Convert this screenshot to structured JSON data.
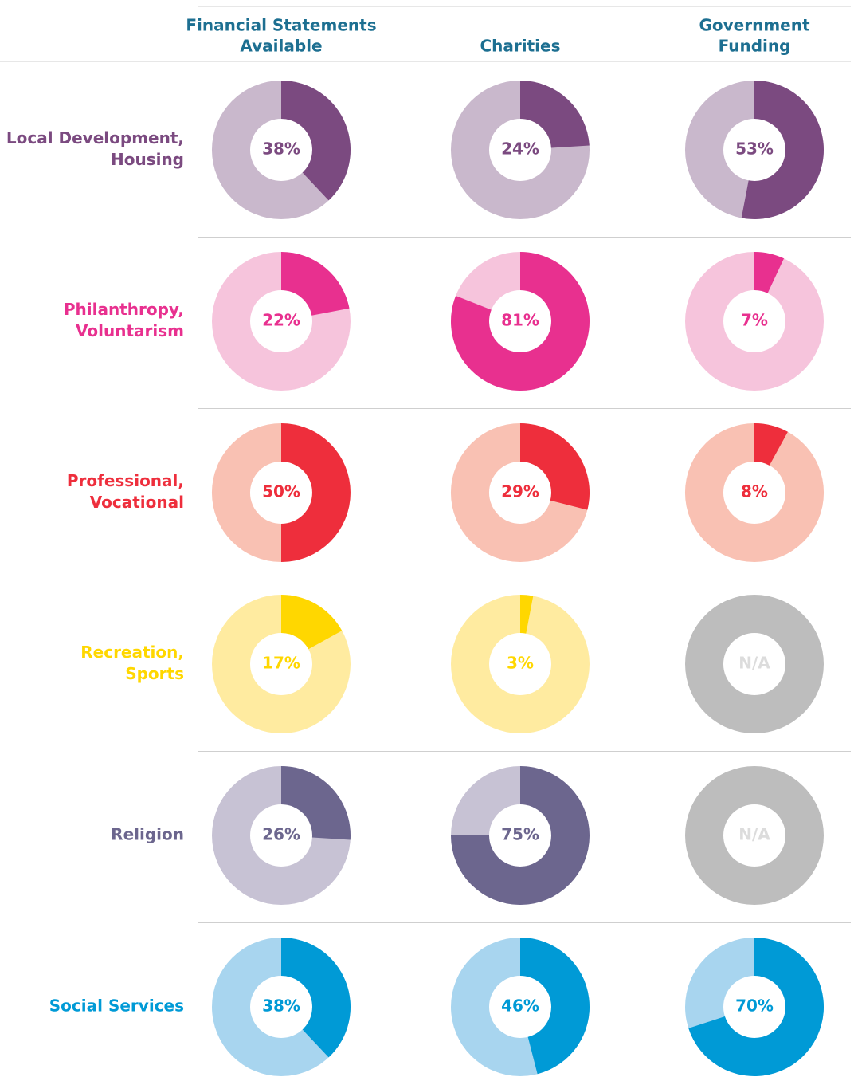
{
  "chart_data": {
    "type": "donut",
    "columns": [
      [
        "Financial Statements",
        "Available"
      ],
      [
        "Charities"
      ],
      [
        "Government",
        "Funding"
      ]
    ],
    "header_color": "#1d6f91",
    "na_color": "#bdbdbd",
    "na_text_color": "#dcdcdc",
    "rows": [
      {
        "label": [
          "Local Development,",
          "Housing"
        ],
        "color": "#7b4a80",
        "light_color": "#c9b8cc",
        "values": [
          38,
          24,
          53
        ],
        "value_labels": [
          "38%",
          "24%",
          "53%"
        ]
      },
      {
        "label": [
          "Philanthropy,",
          "Voluntarism"
        ],
        "color": "#e8308f",
        "light_color": "#f6c4dc",
        "values": [
          22,
          81,
          7
        ],
        "value_labels": [
          "22%",
          "81%",
          "7%"
        ]
      },
      {
        "label": [
          "Professional,",
          "Vocational"
        ],
        "color": "#ee2e3c",
        "light_color": "#f9c1b3",
        "values": [
          50,
          29,
          8
        ],
        "value_labels": [
          "50%",
          "29%",
          "8%"
        ]
      },
      {
        "label": [
          "Recreation,",
          "Sports"
        ],
        "color": "#ffd700",
        "light_color": "#ffeba0",
        "values": [
          17,
          3,
          null
        ],
        "value_labels": [
          "17%",
          "3%",
          "N/A"
        ]
      },
      {
        "label": [
          "Religion"
        ],
        "color": "#6c668e",
        "light_color": "#c7c2d4",
        "values": [
          26,
          75,
          null
        ],
        "value_labels": [
          "26%",
          "75%",
          "N/A"
        ]
      },
      {
        "label": [
          "Social Services"
        ],
        "color": "#009ad6",
        "light_color": "#a8d5ef",
        "values": [
          38,
          46,
          70
        ],
        "value_labels": [
          "38%",
          "46%",
          "70%"
        ]
      }
    ]
  }
}
